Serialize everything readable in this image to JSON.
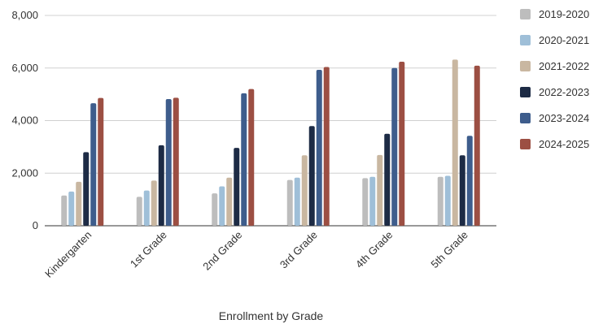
{
  "chart_data": {
    "type": "bar",
    "title": "",
    "xlabel": "Enrollment by Grade",
    "ylabel": "",
    "ylim": [
      0,
      8000
    ],
    "yticks": [
      0,
      2000,
      4000,
      6000,
      8000
    ],
    "ytick_labels": [
      "0",
      "2,000",
      "4,000",
      "6,000",
      "8,000"
    ],
    "grid": true,
    "legend_position": "right",
    "categories": [
      "Kindergarten",
      "1st Grade",
      "2nd Grade",
      "3rd Grade",
      "4th Grade",
      "5th Grade"
    ],
    "series": [
      {
        "name": "2019-2020",
        "color": "#bdbdbd",
        "values": [
          1150,
          1100,
          1230,
          1740,
          1810,
          1860
        ]
      },
      {
        "name": "2020-2021",
        "color": "#9fbfd8",
        "values": [
          1300,
          1340,
          1500,
          1830,
          1860,
          1900
        ]
      },
      {
        "name": "2021-2022",
        "color": "#c9b7a1",
        "values": [
          1670,
          1720,
          1830,
          2680,
          2690,
          6320
        ]
      },
      {
        "name": "2022-2023",
        "color": "#1d2b45",
        "values": [
          2800,
          3060,
          2960,
          3790,
          3500,
          2680
        ]
      },
      {
        "name": "2023-2024",
        "color": "#3e5d8c",
        "values": [
          4660,
          4820,
          5040,
          5930,
          6000,
          3420
        ]
      },
      {
        "name": "2024-2025",
        "color": "#9c4f43",
        "values": [
          4860,
          4870,
          5200,
          6040,
          6240,
          6090
        ]
      }
    ]
  }
}
